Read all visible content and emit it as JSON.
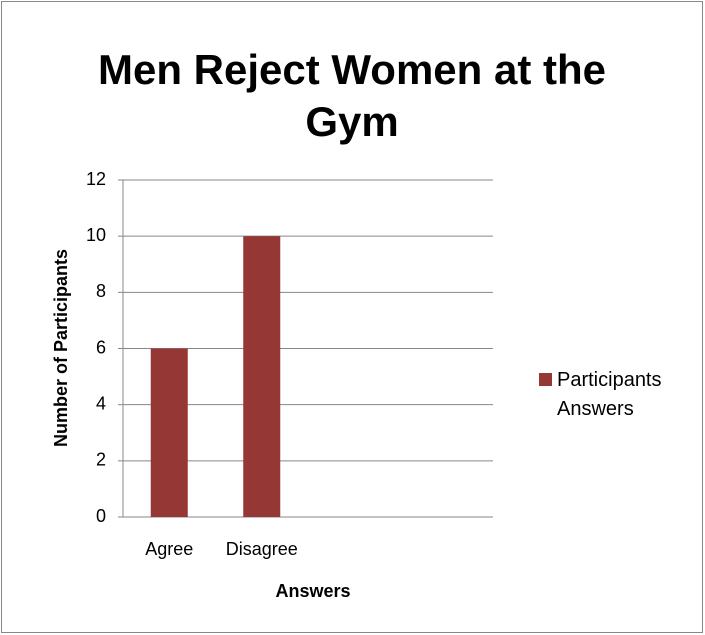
{
  "chart_data": {
    "type": "bar",
    "title": "Men Reject Women at the Gym",
    "categories": [
      "Agree",
      "Disagree",
      null,
      null
    ],
    "series": [
      {
        "name": "Participants Answers",
        "color": "#953735",
        "values": [
          6,
          10,
          null,
          null
        ]
      }
    ],
    "xlabel": "Answers",
    "ylabel": "Number of Participants",
    "ylim": [
      0,
      12
    ],
    "yticks": [
      0,
      2,
      4,
      6,
      8,
      10,
      12
    ],
    "grid": true,
    "legend": "right"
  }
}
